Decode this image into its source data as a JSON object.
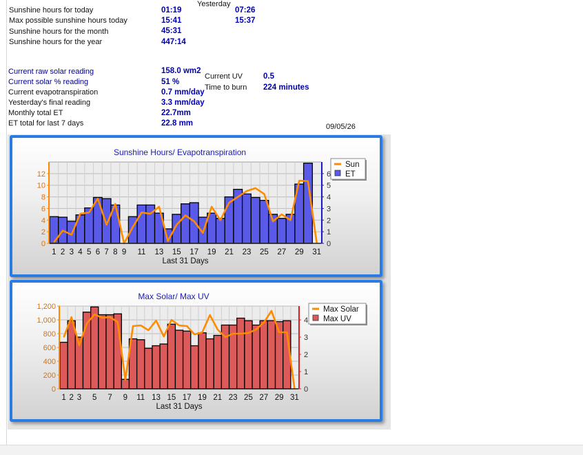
{
  "stats": {
    "rows_a": [
      {
        "label": "Sunshine hours for today",
        "value": "01:19",
        "yesterday": "07:26"
      },
      {
        "label": "Max possible sunshine hours today",
        "value": "15:41",
        "yesterday": "15:37"
      },
      {
        "label": "Sunshine hours for the month",
        "value": "45:31"
      },
      {
        "label": "Sunshine hours for the year",
        "value": "447:14"
      }
    ],
    "yesterday_label": "Yesterday",
    "rows_b": [
      {
        "label": "Current raw solar reading",
        "value": "158.0 wm2"
      },
      {
        "label": "Current solar % reading",
        "value": "51 %"
      },
      {
        "label": "Current evapotranspiration",
        "value": "0.7 mm/day"
      },
      {
        "label": "Yesterday's final reading",
        "value": "3.3 mm/day"
      },
      {
        "label": "Monthly total ET",
        "value": "22.7mm"
      },
      {
        "label": "ET total for last 7 days",
        "value": "22.8 mm"
      }
    ],
    "uv_label": "Current UV",
    "uv_value": "0.5",
    "burn_label": "Time to burn",
    "burn_value": "224 minutes",
    "date": "09/05/26"
  },
  "colors": {
    "line": "#ff8c00",
    "et_bar": "#5a5ae8",
    "uv_bar": "#dd5a5a",
    "panel_border": "#2a7be2",
    "title": "#1a1ab0"
  },
  "chart_data": [
    {
      "type": "bar",
      "title": "Sunshine Hours/ Evapotranspiration",
      "xlabel": "Last 31 Days",
      "x": [
        1,
        2,
        3,
        4,
        5,
        6,
        7,
        8,
        9,
        10,
        11,
        12,
        13,
        14,
        15,
        16,
        17,
        18,
        19,
        20,
        21,
        22,
        23,
        24,
        25,
        26,
        27,
        28,
        29,
        30,
        31
      ],
      "x_tick_labels": [
        "1",
        "2",
        "3",
        "4",
        "5",
        "6",
        "7",
        "8",
        "9",
        "11",
        "13",
        "15",
        "17",
        "19",
        "21",
        "23",
        "25",
        "27",
        "29",
        "31"
      ],
      "ylim_left": [
        0,
        14
      ],
      "yticks_left": [
        0,
        2,
        4,
        6,
        8,
        10,
        12
      ],
      "ylim_right": [
        0,
        7
      ],
      "yticks_right": [
        0,
        1,
        2,
        3,
        4,
        5,
        6
      ],
      "legend_position": "top-right",
      "grid": true,
      "series": [
        {
          "name": "Sun",
          "type": "line",
          "axis": "left",
          "values": [
            0.2,
            2.2,
            1.5,
            5.1,
            5.3,
            7.7,
            3.2,
            6.8,
            0.0,
            2.8,
            5.3,
            5.1,
            6.3,
            0.4,
            3.2,
            4.8,
            3.8,
            1.8,
            6.3,
            4.0,
            7.0,
            8.0,
            9.0,
            9.5,
            8.5,
            3.8,
            5.0,
            4.0,
            10.8,
            10.7,
            0.1
          ]
        },
        {
          "name": "ET",
          "type": "bar",
          "axis": "right",
          "values": [
            2.3,
            2.25,
            1.9,
            2.45,
            3.05,
            3.95,
            3.85,
            3.3,
            0.0,
            2.3,
            3.3,
            3.3,
            2.6,
            1.25,
            2.5,
            3.4,
            3.5,
            2.25,
            2.6,
            2.15,
            4.0,
            4.65,
            4.25,
            3.95,
            3.7,
            2.5,
            2.15,
            2.5,
            5.1,
            6.9,
            0.0
          ]
        }
      ]
    },
    {
      "type": "bar",
      "title": "Max Solar/ Max UV",
      "xlabel": "Last 31 Days",
      "x": [
        1,
        2,
        3,
        4,
        5,
        6,
        7,
        8,
        9,
        10,
        11,
        12,
        13,
        14,
        15,
        16,
        17,
        18,
        19,
        20,
        21,
        22,
        23,
        24,
        25,
        26,
        27,
        28,
        29,
        30,
        31
      ],
      "x_tick_labels": [
        "1",
        "2",
        "3",
        "5",
        "7",
        "9",
        "11",
        "13",
        "15",
        "17",
        "19",
        "21",
        "23",
        "25",
        "27",
        "29",
        "31"
      ],
      "ylim_left": [
        0,
        1200
      ],
      "yticks_left": [
        0,
        200,
        400,
        600,
        800,
        1000,
        1200
      ],
      "ytick_labels_left": [
        "0",
        "200",
        "400",
        "600",
        "800",
        "1,000",
        "1,200"
      ],
      "ylim_right": [
        0,
        4.8
      ],
      "yticks_right": [
        0,
        1,
        2,
        3,
        4
      ],
      "legend_position": "top-right",
      "grid": true,
      "series": [
        {
          "name": "Max Solar",
          "type": "line",
          "axis": "left",
          "values": [
            750,
            1040,
            630,
            950,
            1080,
            1030,
            1040,
            970,
            130,
            910,
            920,
            850,
            990,
            760,
            1000,
            920,
            910,
            790,
            820,
            1070,
            860,
            750,
            800,
            800,
            810,
            860,
            960,
            1130,
            820,
            820,
            0
          ]
        },
        {
          "name": "Max UV",
          "type": "bar",
          "axis": "right",
          "values": [
            2.7,
            3.95,
            3.0,
            4.45,
            4.75,
            4.3,
            4.3,
            4.35,
            0.55,
            2.9,
            2.85,
            2.35,
            2.5,
            2.6,
            3.75,
            3.4,
            3.35,
            2.5,
            3.25,
            2.9,
            3.1,
            3.7,
            3.7,
            4.1,
            3.95,
            3.7,
            3.95,
            3.95,
            3.9,
            3.95,
            0.0
          ]
        }
      ]
    }
  ]
}
